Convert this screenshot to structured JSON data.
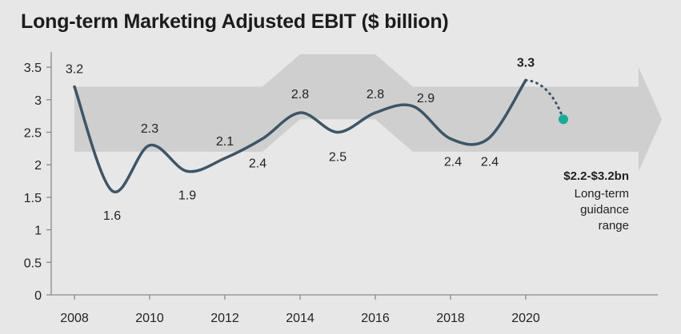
{
  "chart_data": {
    "type": "line",
    "title": "Long-term Marketing Adjusted EBIT ($ billion)",
    "xlabel": "",
    "ylabel": "",
    "x": [
      2008,
      2009,
      2010,
      2011,
      2012,
      2013,
      2014,
      2015,
      2016,
      2017,
      2018,
      2019,
      2020
    ],
    "x_ticks": [
      2008,
      2010,
      2012,
      2014,
      2016,
      2018,
      2020
    ],
    "y_ticks": [
      "0",
      "0.5",
      "1",
      "1.5",
      "2",
      "2.5",
      "3",
      "3.5"
    ],
    "ylim": [
      0,
      3.5
    ],
    "series": [
      {
        "values": [
          3.2,
          1.6,
          2.3,
          1.9,
          2.1,
          2.4,
          2.8,
          2.5,
          2.8,
          2.9,
          2.4,
          2.4,
          3.3
        ],
        "labels": [
          "3.2",
          "1.6",
          "2.3",
          "1.9",
          "2.1",
          "2.4",
          "2.8",
          "2.5",
          "2.8",
          "2.9",
          "2.4",
          "2.4",
          "3.3"
        ],
        "color": "#3d5566"
      }
    ],
    "projection": {
      "x": 2021,
      "y": 2.7,
      "color": "#1aaa98"
    },
    "guidance": {
      "range": [
        2.2,
        3.2
      ],
      "label": "$2.2-$3.2bn",
      "lines": [
        "Long-term",
        "guidance",
        "range"
      ]
    },
    "grid": false,
    "legend": "none",
    "colors": {
      "line": "#3d5566",
      "band": "#cfcfcf",
      "dot": "#1aaa98",
      "background": "#e7e7e7",
      "axis": "#8a8a8a"
    }
  }
}
